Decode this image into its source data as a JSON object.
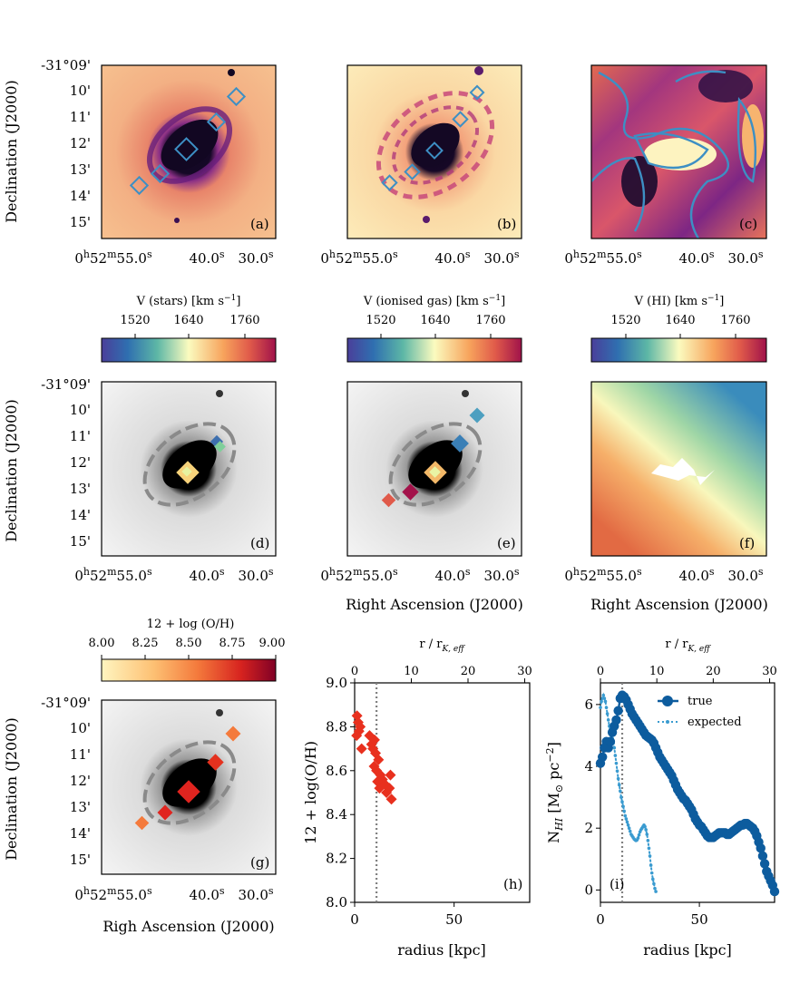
{
  "colors": {
    "magma_low": "#1a0a2e",
    "magma_mid": "#b23a7a",
    "magma_high": "#fdf3c0",
    "contour": "#3d8fc4",
    "marker_outline": "#3d8fc4",
    "grey_galaxy": "#000000",
    "metal_point": "#e8301e",
    "true_line": "#0d5c9e",
    "expected_line": "#3a9bd0",
    "dotted": "#808080"
  },
  "icons": {
    "marker": "diamond-icon"
  },
  "panels": {
    "a": {
      "letter": "(a)"
    },
    "b": {
      "letter": "(b)"
    },
    "c": {
      "letter": "(c)"
    },
    "d": {
      "letter": "(d)"
    },
    "e": {
      "letter": "(e)"
    },
    "f": {
      "letter": "(f)"
    },
    "g": {
      "letter": "(g)"
    },
    "h": {
      "letter": "(h)"
    },
    "i": {
      "letter": "(i)"
    }
  },
  "sky_axes": {
    "dec_ticks": [
      "-31°09'",
      "10'",
      "11'",
      "12'",
      "13'",
      "14'",
      "15'"
    ],
    "ra_ticks": [
      "0h52m55.0s",
      "40.0s",
      "30.0s"
    ],
    "ra_first_parts": {
      "h": "0",
      "hs": "h",
      "m": "52",
      "ms": "m",
      "s": "55.0",
      "ss": "s"
    },
    "ra_second_parts": {
      "v": "40.0",
      "s": "s"
    },
    "ra_third_parts": {
      "v": "30.0",
      "s": "s"
    },
    "ylabel": "Declination (J2000)",
    "xlabel_e": "Right Ascension (J2000)",
    "xlabel_f": "Right Ascension (J2000)",
    "xlabel_g": "Righ Ascension (J2000)"
  },
  "colorbars": {
    "stars": {
      "label": "V (stars) [km s−1]",
      "label_main": "V (stars) [km s",
      "label_sup": "−1",
      "label_end": "]",
      "ticks": [
        "1520",
        "1640",
        "1760"
      ]
    },
    "gas": {
      "label": "V (ionised gas) [km s−1]",
      "label_main": "V (ionised gas) [km s",
      "label_sup": "−1",
      "label_end": "]",
      "ticks": [
        "1520",
        "1640",
        "1760"
      ]
    },
    "hi": {
      "label": "V (HI) [km s−1]",
      "label_main": "V (HI) [km s",
      "label_sup": "−1",
      "label_end": "]",
      "ticks": [
        "1520",
        "1640",
        "1760"
      ]
    },
    "metal": {
      "label": "12 + log (O/H)",
      "ticks": [
        "8.00",
        "8.25",
        "8.50",
        "8.75",
        "9.00"
      ]
    }
  },
  "chart_data": [
    {
      "type": "scatter",
      "panel": "h",
      "letter": "(h)",
      "xlabel": "radius [kpc]",
      "ylabel": "12 + log(O/H)",
      "top_xlabel": "r / rK,eff",
      "top_xlabel_main": "r / r",
      "top_xlabel_sub": "K, eff",
      "xlim": [
        0,
        88
      ],
      "ylim": [
        8.0,
        9.0
      ],
      "xticks": [
        0,
        50
      ],
      "xtick_labels": [
        "0",
        "50"
      ],
      "yticks": [
        8.0,
        8.2,
        8.4,
        8.6,
        8.8,
        9.0
      ],
      "ytick_labels": [
        "8.0",
        "8.2",
        "8.4",
        "8.6",
        "8.8",
        "9.0"
      ],
      "top_ticks": [
        0,
        10,
        20,
        30
      ],
      "top_tick_labels": [
        "0",
        "10",
        "20",
        "30"
      ],
      "top_scale_kpc_per_unit": 2.85,
      "vline_x": 11,
      "marker_color": "#e8301e",
      "points": [
        {
          "x": 1.2,
          "y": 8.85
        },
        {
          "x": 1.8,
          "y": 8.82
        },
        {
          "x": 2.2,
          "y": 8.78
        },
        {
          "x": 1.0,
          "y": 8.76
        },
        {
          "x": 2.8,
          "y": 8.8
        },
        {
          "x": 3.5,
          "y": 8.7
        },
        {
          "x": 7.5,
          "y": 8.76
        },
        {
          "x": 8.5,
          "y": 8.72
        },
        {
          "x": 9.2,
          "y": 8.7
        },
        {
          "x": 10.0,
          "y": 8.74
        },
        {
          "x": 10.5,
          "y": 8.68
        },
        {
          "x": 9.8,
          "y": 8.62
        },
        {
          "x": 11.0,
          "y": 8.6
        },
        {
          "x": 12.0,
          "y": 8.65
        },
        {
          "x": 13.0,
          "y": 8.58
        },
        {
          "x": 14.0,
          "y": 8.56
        },
        {
          "x": 12.5,
          "y": 8.52
        },
        {
          "x": 15.0,
          "y": 8.54
        },
        {
          "x": 16.0,
          "y": 8.5
        },
        {
          "x": 17.5,
          "y": 8.52
        },
        {
          "x": 18.0,
          "y": 8.58
        },
        {
          "x": 18.5,
          "y": 8.47
        },
        {
          "x": 11.5,
          "y": 8.55
        }
      ]
    },
    {
      "type": "line",
      "panel": "i",
      "letter": "(i)",
      "xlabel": "radius [kpc]",
      "ylabel": "NHI [M⊙ pc−2]",
      "ylabel_main": "N",
      "ylabel_sub": "HI",
      "ylabel_mid": " [M",
      "ylabel_sun": "⊙",
      "ylabel_pc": " pc",
      "ylabel_sup": "−2",
      "ylabel_end": "]",
      "top_xlabel": "r / rK,eff",
      "top_xlabel_main": "r / r",
      "top_xlabel_sub": "K, eff",
      "xlim": [
        0,
        88
      ],
      "ylim": [
        -0.4,
        6.7
      ],
      "xticks": [
        0,
        50
      ],
      "xtick_labels": [
        "0",
        "50"
      ],
      "yticks": [
        0,
        2,
        4,
        6
      ],
      "ytick_labels": [
        "0",
        "2",
        "4",
        "6"
      ],
      "top_ticks": [
        0,
        10,
        20,
        30
      ],
      "top_tick_labels": [
        "0",
        "10",
        "20",
        "30"
      ],
      "top_scale_kpc_per_unit": 2.85,
      "vline_x": 11,
      "legend_loc": "upper right",
      "series": [
        {
          "name": "true",
          "style": "solid",
          "color": "#0d5c9e",
          "x": [
            0,
            1,
            2,
            3,
            4,
            5,
            6,
            7,
            8,
            9,
            10,
            11,
            12,
            13,
            14,
            15,
            16,
            17,
            18,
            19,
            20,
            21,
            22,
            23,
            24,
            25,
            26,
            27,
            28,
            29,
            30,
            31,
            32,
            33,
            34,
            35,
            36,
            37,
            38,
            39,
            40,
            41,
            42,
            43,
            44,
            45,
            46,
            47,
            48,
            49,
            50,
            51,
            52,
            53,
            54,
            55,
            56,
            57,
            58,
            59,
            60,
            61,
            62,
            63,
            64,
            65,
            66,
            67,
            68,
            69,
            70,
            71,
            72,
            73,
            74,
            75,
            76,
            77,
            78,
            79,
            80,
            81,
            82,
            83,
            84,
            85,
            86,
            87,
            88
          ],
          "y": [
            4.1,
            4.3,
            4.6,
            4.8,
            4.6,
            4.8,
            5.1,
            5.3,
            5.5,
            5.8,
            6.2,
            6.3,
            6.25,
            6.15,
            6.0,
            5.85,
            5.7,
            5.6,
            5.5,
            5.4,
            5.3,
            5.2,
            5.1,
            5.0,
            4.95,
            4.9,
            4.85,
            4.75,
            4.6,
            4.45,
            4.3,
            4.2,
            4.1,
            4.0,
            3.9,
            3.8,
            3.7,
            3.55,
            3.4,
            3.25,
            3.15,
            3.05,
            2.95,
            2.9,
            2.8,
            2.7,
            2.6,
            2.45,
            2.3,
            2.2,
            2.1,
            2.05,
            1.95,
            1.85,
            1.75,
            1.7,
            1.7,
            1.7,
            1.75,
            1.8,
            1.85,
            1.85,
            1.85,
            1.85,
            1.8,
            1.8,
            1.85,
            1.9,
            1.95,
            2.0,
            2.05,
            2.1,
            2.1,
            2.15,
            2.15,
            2.1,
            2.05,
            2.0,
            1.9,
            1.75,
            1.55,
            1.35,
            1.1,
            0.85,
            0.6,
            0.45,
            0.3,
            0.15,
            -0.05
          ]
        },
        {
          "name": "expected",
          "style": "dotted",
          "color": "#3a9bd0",
          "x": [
            0,
            0.5,
            1,
            1.5,
            2,
            2.5,
            3,
            3.5,
            4,
            4.5,
            5,
            5.5,
            6,
            6.5,
            7,
            7.5,
            8,
            8.5,
            9,
            9.5,
            10,
            10.5,
            11,
            11.5,
            12,
            12.5,
            13,
            13.5,
            14,
            14.5,
            15,
            15.5,
            16,
            16.5,
            17,
            17.5,
            18,
            18.5,
            19,
            19.5,
            20,
            20.5,
            21,
            21.5,
            22,
            22.5,
            23,
            23.5,
            24,
            24.5,
            25,
            25.5,
            26,
            26.5,
            27,
            27.5,
            28
          ],
          "y": [
            5.9,
            6.1,
            6.2,
            6.3,
            6.2,
            6.1,
            5.9,
            5.7,
            5.5,
            5.3,
            5.2,
            5.0,
            4.9,
            4.75,
            4.6,
            4.35,
            4.1,
            3.85,
            3.6,
            3.4,
            3.2,
            3.0,
            2.85,
            2.7,
            2.55,
            2.4,
            2.3,
            2.2,
            2.1,
            2.0,
            1.9,
            1.8,
            1.75,
            1.7,
            1.65,
            1.62,
            1.6,
            1.62,
            1.68,
            1.78,
            1.88,
            1.95,
            2.0,
            2.05,
            2.1,
            2.05,
            1.95,
            1.8,
            1.6,
            1.35,
            1.1,
            0.8,
            0.55,
            0.35,
            0.2,
            0.05,
            -0.05
          ]
        }
      ]
    }
  ]
}
